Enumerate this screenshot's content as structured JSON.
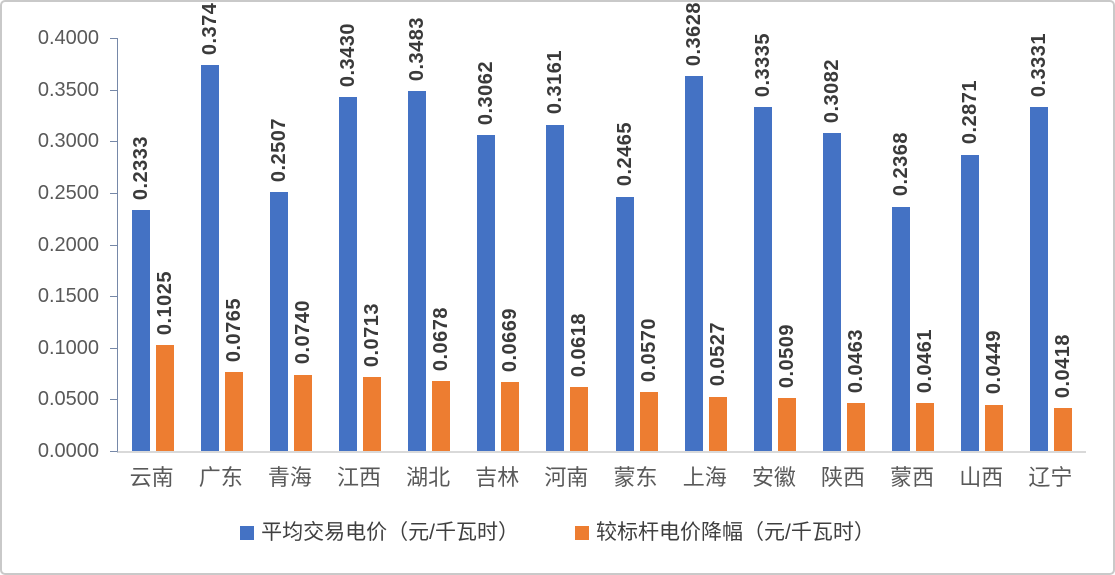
{
  "chart_data": {
    "type": "bar",
    "title": "",
    "xlabel": "",
    "ylabel": "",
    "categories": [
      "云南",
      "广东",
      "青海",
      "江西",
      "湖北",
      "吉林",
      "河南",
      "蒙东",
      "上海",
      "安徽",
      "陕西",
      "蒙西",
      "山西",
      "辽宁"
    ],
    "series": [
      {
        "name": "平均交易电价（元/千瓦时）",
        "color": "#4472c4",
        "values": [
          0.2333,
          0.374,
          0.2507,
          0.343,
          0.3483,
          0.3062,
          0.3161,
          0.2465,
          0.3628,
          0.3335,
          0.3082,
          0.2368,
          0.2871,
          0.3331
        ]
      },
      {
        "name": "较标杆电价降幅（元/千瓦时）",
        "color": "#ed7d31",
        "values": [
          0.1025,
          0.0765,
          0.074,
          0.0713,
          0.0678,
          0.0669,
          0.0618,
          0.057,
          0.0527,
          0.0509,
          0.0463,
          0.0461,
          0.0449,
          0.0418
        ]
      }
    ],
    "ylim": [
      0,
      0.4
    ],
    "ytick_labels": [
      "0.0000",
      "0.0500",
      "0.1000",
      "0.1500",
      "0.2000",
      "0.2500",
      "0.3000",
      "0.3500",
      "0.4000"
    ],
    "grid": false,
    "legend_position": "bottom",
    "data_labels": {
      "visible": true,
      "rotation": "vertical",
      "decimals": 4
    }
  },
  "colors": {
    "series_blue": "#4472c4",
    "series_orange": "#ed7d31",
    "axis_line": "#7688a8",
    "baseline": "#d9d9d9",
    "tick_label": "#595959",
    "category_label": "#595959",
    "data_label": "#3a3a3a",
    "legend_text": "#3f3f3f",
    "frame_border": "#c9c9c9",
    "background": "#ffffff"
  }
}
